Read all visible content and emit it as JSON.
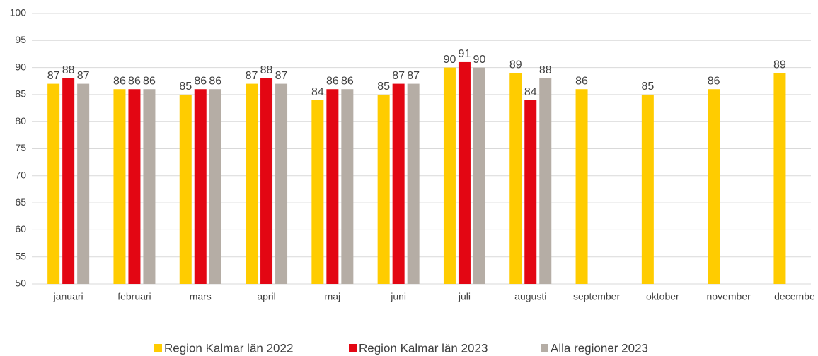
{
  "chart_data": {
    "type": "bar",
    "categories": [
      "januari",
      "februari",
      "mars",
      "april",
      "maj",
      "juni",
      "juli",
      "augusti",
      "september",
      "oktober",
      "november",
      "decembe"
    ],
    "series": [
      {
        "name": "Region Kalmar län 2022",
        "color": "#ffcc00",
        "values": [
          87,
          86,
          85,
          87,
          84,
          85,
          90,
          89,
          86,
          85,
          86,
          89
        ]
      },
      {
        "name": "Region Kalmar län 2023",
        "color": "#e30613",
        "values": [
          88,
          86,
          86,
          88,
          86,
          87,
          91,
          84,
          null,
          null,
          null,
          null
        ]
      },
      {
        "name": "Alla regioner 2023",
        "color": "#b5ada5",
        "values": [
          87,
          86,
          86,
          87,
          86,
          87,
          90,
          88,
          null,
          null,
          null,
          null
        ]
      }
    ],
    "ylim": [
      50,
      100
    ],
    "yticks": [
      50,
      55,
      60,
      65,
      70,
      75,
      80,
      85,
      90,
      95,
      100
    ],
    "grid": true,
    "legend": "bottom"
  }
}
